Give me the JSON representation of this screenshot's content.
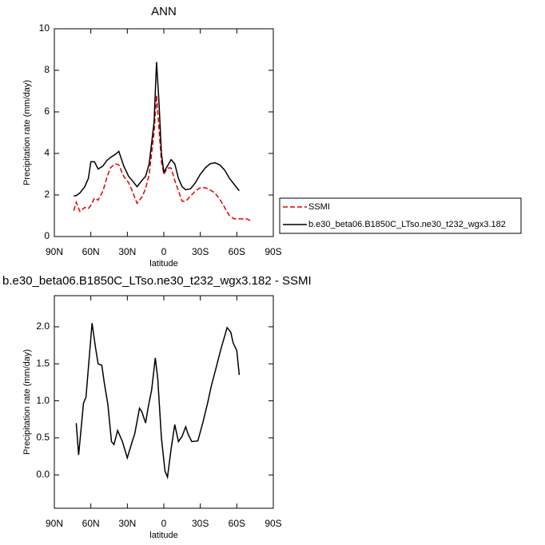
{
  "chart_data": [
    {
      "type": "line",
      "title": "ANN",
      "xlabel": "latitude",
      "ylabel": "Precipitation rate (mm/day)",
      "x": [
        74,
        72,
        69,
        65,
        62,
        60,
        57,
        54,
        50,
        47,
        44,
        40,
        37,
        33,
        29,
        26,
        22,
        18,
        15,
        12,
        8,
        6,
        4,
        2,
        0,
        -3,
        -6,
        -9,
        -12,
        -15,
        -18,
        -22,
        -26,
        -30,
        -34,
        -38,
        -42,
        -46,
        -50,
        -54,
        -58,
        -62,
        -64,
        -68,
        -72
      ],
      "series": [
        {
          "name": "SSMI",
          "color": "#e00000",
          "line_style": "dashed",
          "values": [
            1.25,
            1.65,
            1.2,
            1.4,
            1.35,
            1.5,
            1.85,
            1.75,
            2.2,
            2.8,
            3.3,
            3.5,
            3.45,
            2.9,
            2.6,
            2.2,
            1.6,
            1.9,
            2.3,
            3.0,
            5.0,
            6.8,
            5.2,
            3.6,
            3.0,
            3.3,
            3.3,
            2.7,
            2.2,
            1.7,
            1.7,
            1.95,
            2.2,
            2.35,
            2.35,
            2.25,
            2.1,
            1.8,
            1.4,
            1.0,
            0.85,
            0.85,
            0.85,
            0.85,
            0.75
          ]
        },
        {
          "name": "b.e30_beta06.B1850C_LTso.ne30_t232_wgx3.182",
          "color": "#000000",
          "line_style": "solid",
          "values": [
            1.95,
            1.97,
            2.1,
            2.4,
            2.8,
            3.6,
            3.6,
            3.25,
            3.4,
            3.65,
            3.8,
            3.95,
            4.1,
            3.4,
            2.9,
            2.7,
            2.4,
            2.7,
            2.9,
            3.5,
            5.5,
            8.4,
            6.5,
            4.0,
            3.1,
            3.4,
            3.7,
            3.5,
            2.8,
            2.4,
            2.25,
            2.3,
            2.6,
            3.0,
            3.3,
            3.5,
            3.55,
            3.45,
            3.2,
            2.8,
            2.5,
            2.2,
            null,
            null,
            null
          ]
        }
      ],
      "xlim": [
        90,
        -90
      ],
      "xticks": [
        {
          "value": 90,
          "label": "90N"
        },
        {
          "value": 60,
          "label": "60N"
        },
        {
          "value": 30,
          "label": "30N"
        },
        0,
        {
          "value": -30,
          "label": "30S"
        },
        {
          "value": -60,
          "label": "60S"
        },
        {
          "value": -90,
          "label": "90S"
        }
      ],
      "ylim": [
        0,
        10
      ],
      "yticks": [
        0,
        2,
        4,
        6,
        8,
        10
      ],
      "legend": "right"
    },
    {
      "type": "line",
      "title": "b.e30_beta06.B1850C_LTso.ne30_t232_wgx3.182 - SSMI",
      "xlabel": "latitude",
      "ylabel": "Precipitation rate (mm/day)",
      "x": [
        72,
        70,
        66,
        64,
        59,
        56,
        54,
        51,
        49,
        46,
        43,
        41,
        38,
        34,
        30,
        26,
        24,
        20,
        18,
        15,
        13,
        10,
        7,
        5,
        2,
        -1,
        -3,
        -6,
        -9,
        -12,
        -15,
        -18,
        -20,
        -23,
        -28,
        -32,
        -36,
        -39,
        -43,
        -47,
        -52,
        -55,
        -57,
        -60,
        -62
      ],
      "series": [
        {
          "name": "b.e30_beta06.B1850C_LTso.ne30_t232_wgx3.182 - SSMI",
          "color": "#000000",
          "line_style": "solid",
          "values": [
            0.7,
            0.27,
            0.97,
            1.05,
            2.05,
            1.7,
            1.5,
            1.48,
            1.25,
            0.95,
            0.45,
            0.41,
            0.6,
            0.45,
            0.23,
            0.45,
            0.55,
            0.9,
            0.85,
            0.7,
            0.9,
            1.15,
            1.58,
            1.3,
            0.5,
            0.05,
            -0.03,
            0.35,
            0.68,
            0.45,
            0.52,
            0.65,
            0.55,
            0.45,
            0.46,
            0.7,
            0.97,
            1.2,
            1.45,
            1.7,
            1.99,
            1.93,
            1.78,
            1.68,
            1.35
          ]
        }
      ],
      "xlim": [
        90,
        -90
      ],
      "xticks": [
        {
          "value": 90,
          "label": "90N"
        },
        {
          "value": 60,
          "label": "60N"
        },
        {
          "value": 30,
          "label": "30N"
        },
        0,
        {
          "value": -30,
          "label": "30S"
        },
        {
          "value": -60,
          "label": "60S"
        },
        {
          "value": -90,
          "label": "90S"
        }
      ],
      "ylim": [
        -0.45,
        2.42
      ],
      "yticks": [
        {
          "value": 0,
          "label": "0.0"
        },
        0.5,
        {
          "value": 1,
          "label": "1.0"
        },
        1.5,
        {
          "value": 2,
          "label": "2.0"
        }
      ]
    }
  ]
}
